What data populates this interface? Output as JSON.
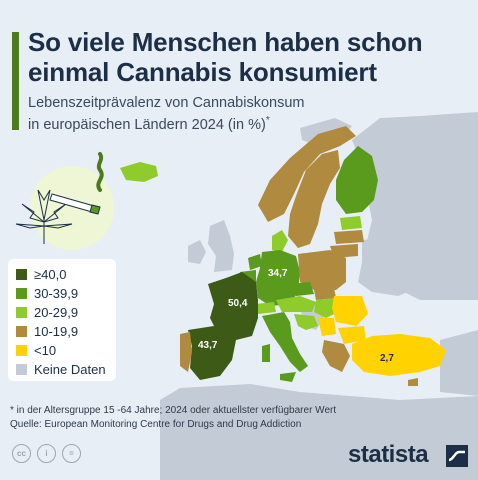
{
  "title": {
    "line1": "So viele Menschen haben schon",
    "line2": "einmal Cannabis konsumiert"
  },
  "subtitle": {
    "line1": "Lebenszeitprävalenz von Cannabiskonsum",
    "line2": "in europäischen Ländern 2024 (in %)",
    "marker": "*"
  },
  "colors": {
    "c40": "#3d5a17",
    "c30": "#5a9a1d",
    "c20": "#8ecb2b",
    "c10": "#b08a3f",
    "c0": "#ffd200",
    "none": "#c3ccd6",
    "sea": "#e7eef5",
    "title_bar": "#4c7a1c"
  },
  "legend": [
    {
      "label": "≥40,0",
      "color": "#3d5a17"
    },
    {
      "label": "30-39,9",
      "color": "#5a9a1d"
    },
    {
      "label": "20-29,9",
      "color": "#8ecb2b"
    },
    {
      "label": "10-19,9",
      "color": "#b08a3f"
    },
    {
      "label": "<10",
      "color": "#ffd200"
    },
    {
      "label": "Keine Daten",
      "color": "#c3ccd6"
    }
  ],
  "value_labels": {
    "france": "50,4",
    "spain": "43,7",
    "germany": "34,7",
    "turkey": "2,7"
  },
  "footnote": {
    "line1": "* in der Altersgruppe 15 -64 Jahre; 2024 oder aktuellster verfügbarer Wert",
    "line2": "Quelle: European Monitoring Centre for Drugs and Drug Addiction"
  },
  "footer": {
    "license_icons": [
      "creative-commons-icon",
      "attribution-icon",
      "no-derivatives-icon"
    ],
    "license_glyphs": [
      "cc",
      "i",
      "="
    ],
    "brand": "statista"
  }
}
